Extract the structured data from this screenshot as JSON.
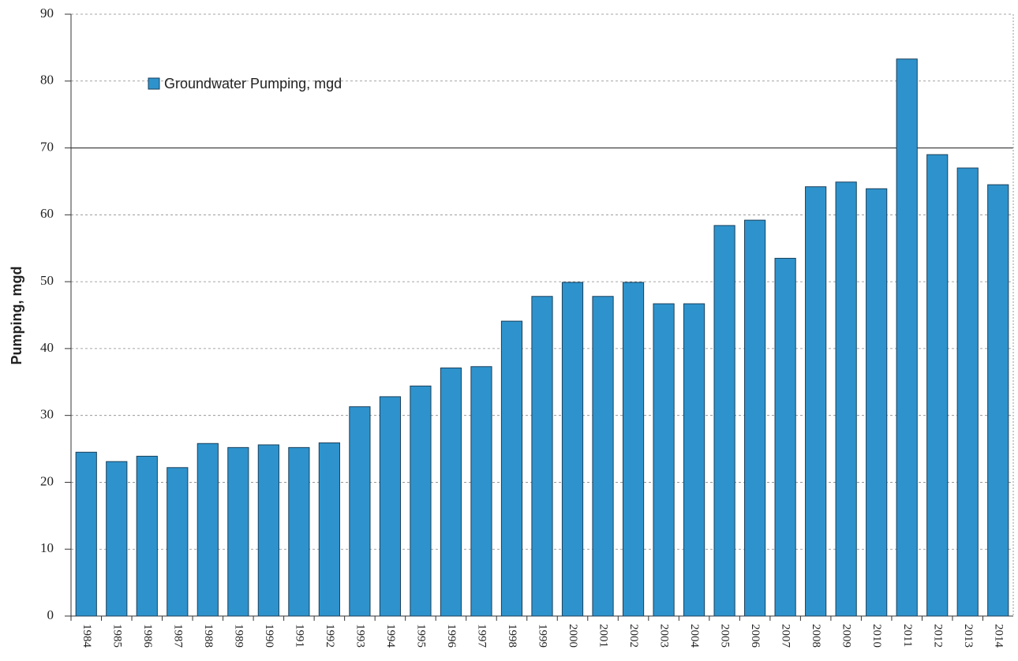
{
  "chart_data": {
    "type": "bar",
    "ylabel": "Pumping, mgd",
    "series": [
      {
        "name": "Groundwater Pumping, mgd",
        "color": "#2e93cc",
        "values": [
          24.5,
          23.1,
          23.9,
          22.2,
          25.8,
          25.2,
          25.6,
          25.2,
          25.9,
          31.3,
          32.8,
          34.4,
          37.1,
          37.3,
          44.1,
          47.8,
          49.9,
          47.8,
          49.9,
          46.7,
          46.7,
          58.4,
          59.2,
          53.5,
          64.2,
          64.9,
          63.9,
          83.3,
          69.0,
          67.0,
          64.5
        ]
      }
    ],
    "categories": [
      "1984",
      "1985",
      "1986",
      "1987",
      "1988",
      "1989",
      "1990",
      "1991",
      "1992",
      "1993",
      "1994",
      "1995",
      "1996",
      "1997",
      "1998",
      "1999",
      "2000",
      "2001",
      "2002",
      "2003",
      "2004",
      "2005",
      "2006",
      "2007",
      "2008",
      "2009",
      "2010",
      "2011",
      "2012",
      "2013",
      "2014"
    ],
    "ylim": [
      0,
      90
    ],
    "yticks": [
      0,
      10,
      20,
      30,
      40,
      50,
      60,
      70,
      80,
      90
    ],
    "grid": true,
    "reference_line": 70,
    "legend": "upper left"
  }
}
